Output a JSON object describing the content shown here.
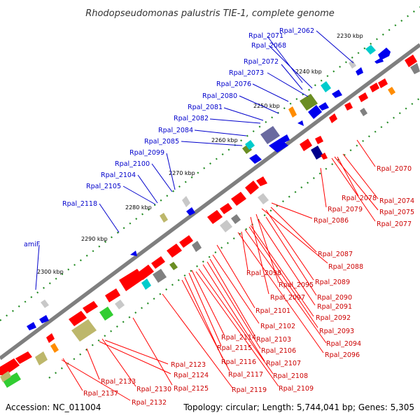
{
  "title": "Rhodopseudomonas palustris TIE-1, complete genome",
  "footer": {
    "accession": "Accession: NC_011004",
    "summary": "Topology: circular; Length: 5,744,041 bp; Genes: 5,305"
  },
  "colors": {
    "forward_label": "#0000cc",
    "reverse_label": "#cc0000",
    "backbone": "#808080",
    "tick": "#228b22"
  },
  "scale_ticks": [
    "2230 kbp",
    "2240 kbp",
    "2250 kbp",
    "2260 kbp",
    "2270 kbp",
    "2280 kbp",
    "2290 kbp",
    "2300 kbp"
  ],
  "forward_labels": [
    "Rpal_2062",
    "Rpal_2071",
    "Rpal_2068",
    "Rpal_2072",
    "Rpal_2073",
    "Rpal_2076",
    "Rpal_2080",
    "Rpal_2081",
    "Rpal_2082",
    "Rpal_2084",
    "Rpal_2085",
    "Rpal_2099",
    "Rpal_2100",
    "Rpal_2104",
    "Rpal_2105",
    "Rpal_2118",
    "amiF"
  ],
  "reverse_labels": [
    "Rpal_2070",
    "Rpal_2074",
    "Rpal_2078",
    "Rpal_2075",
    "Rpal_2079",
    "Rpal_2077",
    "Rpal_2086",
    "Rpal_2087",
    "Rpal_2088",
    "Rpal_2098",
    "Rpal_2089",
    "Rpal_2095",
    "Rpal_2090",
    "Rpal_2097",
    "Rpal_2091",
    "Rpal_2101",
    "Rpal_2092",
    "Rpal_2102",
    "Rpal_2093",
    "Rpal_2114",
    "Rpal_2103",
    "Rpal_2094",
    "Rpal_2115",
    "Rpal_2106",
    "Rpal_2096",
    "Rpal_2116",
    "Rpal_2107",
    "Rpal_2123",
    "Rpal_2124",
    "Rpal_2117",
    "Rpal_2108",
    "Rpal_2133",
    "Rpal_2125",
    "Rpal_2119",
    "Rpal_2109",
    "Rpal_2130",
    "Rpal_2137",
    "Rpal_2132"
  ]
}
